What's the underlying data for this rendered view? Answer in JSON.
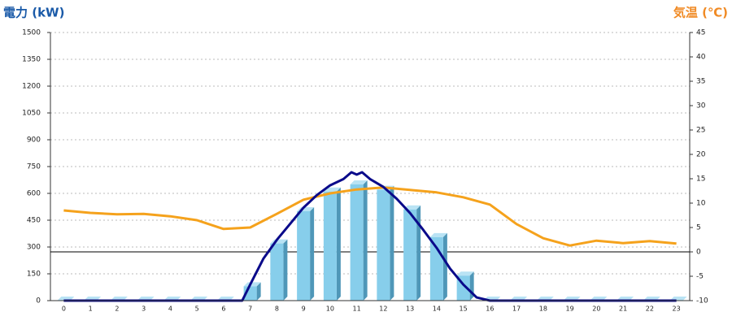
{
  "chart_data": {
    "type": "bar",
    "y_label": "電力 (kW)",
    "y2_label": "気温 (℃)",
    "y_label_color": "#1a5aa8",
    "y2_label_color": "#f08a24",
    "categories": [
      "0",
      "1",
      "2",
      "3",
      "4",
      "5",
      "6",
      "7",
      "8",
      "9",
      "10",
      "11",
      "12",
      "13",
      "14",
      "15",
      "16",
      "17",
      "18",
      "19",
      "20",
      "21",
      "22",
      "23"
    ],
    "ylim": [
      0,
      1500
    ],
    "yticks": [
      0,
      150,
      300,
      450,
      600,
      750,
      900,
      1050,
      1200,
      1350,
      1500
    ],
    "y2lim": [
      -10,
      45
    ],
    "y2ticks": [
      -10,
      -5,
      0,
      5,
      10,
      15,
      20,
      25,
      30,
      35,
      40,
      45
    ],
    "grid": true,
    "y2_reference": 0,
    "series": [
      {
        "type": "bar",
        "color": "#87ceeb",
        "values": [
          0,
          0,
          0,
          0,
          0,
          0,
          0,
          80,
          320,
          500,
          610,
          650,
          620,
          510,
          355,
          140,
          0,
          0,
          0,
          0,
          0,
          0,
          0,
          0
        ]
      },
      {
        "type": "line",
        "axis": "y2",
        "color": "#f5a21c",
        "values": [
          8.5,
          8,
          7.7,
          7.8,
          7.3,
          6.5,
          4.7,
          5,
          7.8,
          10.7,
          12,
          12.8,
          13.2,
          12.7,
          12.2,
          11.2,
          9.7,
          5.7,
          2.8,
          1.3,
          2.3,
          1.8,
          2.2,
          1.7
        ]
      },
      {
        "type": "line",
        "color": "#0a0a8a",
        "x": [
          0,
          6.7,
          7,
          7.5,
          8,
          8.5,
          9,
          9.5,
          10,
          10.5,
          10.8,
          11,
          11.2,
          11.5,
          12,
          12.5,
          13,
          13.5,
          14,
          14.5,
          15,
          15.5,
          16,
          23
        ],
        "values": [
          0,
          0,
          90,
          236,
          340,
          430,
          520,
          590,
          645,
          680,
          718,
          705,
          718,
          680,
          636,
          570,
          490,
          395,
          295,
          180,
          90,
          18,
          0,
          0
        ]
      }
    ]
  }
}
